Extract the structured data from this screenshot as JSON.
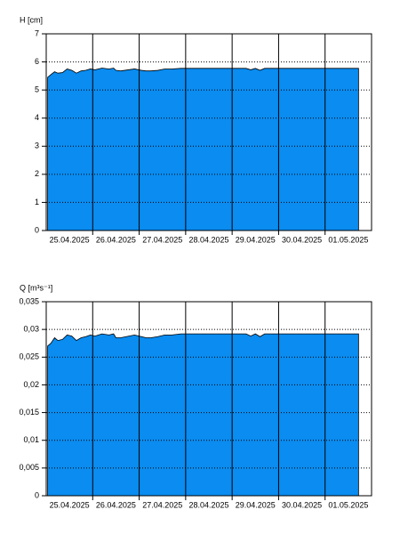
{
  "chart_data": [
    {
      "type": "area",
      "y_label": "H [cm]",
      "color": "#0a8cf0",
      "x": [
        0.03,
        0.1,
        0.18,
        0.25,
        0.35,
        0.45,
        0.55,
        0.65,
        0.75,
        0.85,
        0.95,
        1.05,
        1.2,
        1.35,
        1.45,
        1.5,
        1.6,
        1.9,
        2.05,
        2.15,
        2.25,
        2.4,
        2.55,
        2.7,
        2.9,
        3.5,
        4.0,
        4.3,
        4.4,
        4.5,
        4.6,
        4.7,
        4.8,
        5.2,
        6.0,
        6.72
      ],
      "values": [
        5.45,
        5.55,
        5.65,
        5.6,
        5.62,
        5.75,
        5.7,
        5.6,
        5.68,
        5.7,
        5.75,
        5.72,
        5.78,
        5.75,
        5.78,
        5.7,
        5.68,
        5.75,
        5.7,
        5.68,
        5.68,
        5.7,
        5.75,
        5.75,
        5.77,
        5.77,
        5.77,
        5.77,
        5.72,
        5.77,
        5.7,
        5.77,
        5.77,
        5.77,
        5.77,
        5.77
      ],
      "xlim": [
        0,
        7
      ],
      "xticks": [
        {
          "value": 0.5,
          "label": "25.04.2025"
        },
        {
          "value": 1.5,
          "label": "26.04.2025"
        },
        {
          "value": 2.5,
          "label": "27.04.2025"
        },
        {
          "value": 3.5,
          "label": "28.04.2025"
        },
        {
          "value": 4.5,
          "label": "29.04.2025"
        },
        {
          "value": 5.5,
          "label": "30.04.2025"
        },
        {
          "value": 6.5,
          "label": "01.05.2025"
        }
      ],
      "xgrid": [
        1,
        2,
        3,
        4,
        5,
        6
      ],
      "ylim": [
        0,
        7
      ],
      "yticks": [
        0,
        1,
        2,
        3,
        4,
        5,
        6,
        7
      ],
      "grid": true
    },
    {
      "type": "area",
      "y_label": "Q [m³s⁻¹]",
      "color": "#0a8cf0",
      "x": [
        0.03,
        0.1,
        0.18,
        0.25,
        0.35,
        0.45,
        0.55,
        0.65,
        0.75,
        0.85,
        0.95,
        1.05,
        1.2,
        1.35,
        1.45,
        1.5,
        1.6,
        1.9,
        2.05,
        2.15,
        2.25,
        2.4,
        2.55,
        2.7,
        2.9,
        3.5,
        4.0,
        4.3,
        4.4,
        4.5,
        4.6,
        4.7,
        4.8,
        5.2,
        6.0,
        6.72
      ],
      "values": [
        0.027,
        0.0275,
        0.0285,
        0.028,
        0.0282,
        0.029,
        0.0288,
        0.028,
        0.0285,
        0.0287,
        0.029,
        0.0288,
        0.0292,
        0.029,
        0.0292,
        0.0285,
        0.0285,
        0.029,
        0.0287,
        0.0285,
        0.0285,
        0.0287,
        0.029,
        0.029,
        0.0292,
        0.0292,
        0.0292,
        0.0292,
        0.0288,
        0.0292,
        0.0287,
        0.0292,
        0.0292,
        0.0292,
        0.0292,
        0.0292
      ],
      "xlim": [
        0,
        7
      ],
      "xticks": [
        {
          "value": 0.5,
          "label": "25.04.2025"
        },
        {
          "value": 1.5,
          "label": "26.04.2025"
        },
        {
          "value": 2.5,
          "label": "27.04.2025"
        },
        {
          "value": 3.5,
          "label": "28.04.2025"
        },
        {
          "value": 4.5,
          "label": "29.04.2025"
        },
        {
          "value": 5.5,
          "label": "30.04.2025"
        },
        {
          "value": 6.5,
          "label": "01.05.2025"
        }
      ],
      "xgrid": [
        1,
        2,
        3,
        4,
        5,
        6
      ],
      "ylim": [
        0,
        0.035
      ],
      "yticks": [
        0,
        {
          "value": 0.005,
          "label": "0,005"
        },
        {
          "value": 0.01,
          "label": "0,01"
        },
        {
          "value": 0.015,
          "label": "0,015"
        },
        {
          "value": 0.02,
          "label": "0,02"
        },
        {
          "value": 0.025,
          "label": "0,025"
        },
        {
          "value": 0.03,
          "label": "0,03"
        },
        {
          "value": 0.035,
          "label": "0,035"
        }
      ],
      "grid": true
    }
  ]
}
